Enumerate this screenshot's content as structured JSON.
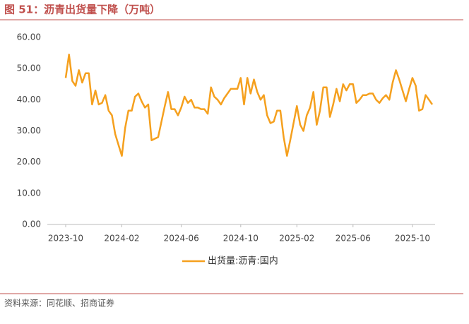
{
  "chart_data": {
    "type": "line",
    "title": "图 51：沥青出货量下降（万吨）",
    "source": "资料来源：同花顺、招商证券",
    "categories": [
      "2023-10",
      null,
      null,
      null,
      null,
      null,
      null,
      null,
      null,
      null,
      null,
      null,
      null,
      null,
      null,
      null,
      null,
      "2024-02",
      null,
      null,
      null,
      null,
      null,
      null,
      null,
      null,
      null,
      null,
      null,
      null,
      null,
      null,
      null,
      null,
      null,
      "2024-06",
      null,
      null,
      null,
      null,
      null,
      null,
      null,
      null,
      null,
      null,
      null,
      null,
      null,
      null,
      null,
      null,
      null,
      "2024-10",
      null,
      null,
      null,
      null,
      null,
      null,
      null,
      null,
      null,
      null,
      null,
      null,
      null,
      null,
      null,
      null,
      "2025-02",
      null,
      null,
      null,
      null,
      null,
      null,
      null,
      null,
      null,
      null,
      null,
      null,
      null,
      null,
      null,
      null,
      "2025-06",
      null,
      null,
      null,
      null,
      null,
      null,
      null,
      null,
      null,
      null,
      null,
      null,
      null,
      null,
      null,
      null,
      null,
      "2025-10",
      null,
      null,
      null,
      null,
      null,
      null
    ],
    "series": [
      {
        "name": "出货量:沥青:国内",
        "color": "#f5a01e",
        "values": [
          47,
          54.5,
          46,
          44.5,
          49.5,
          45.5,
          48.5,
          48.5,
          38.5,
          43,
          38.5,
          39,
          41.5,
          36.5,
          35,
          29,
          25.5,
          22,
          31,
          36.5,
          36.5,
          41,
          42,
          39.5,
          37.5,
          38.5,
          27,
          27.5,
          28,
          33,
          38,
          42.5,
          37,
          37,
          35,
          37.5,
          41,
          39,
          40,
          37.5,
          37.5,
          37,
          37,
          35.5,
          44,
          41,
          40,
          38.5,
          40.5,
          42,
          43.5,
          43.5,
          43.5,
          47,
          38.5,
          47,
          42,
          46.5,
          42.5,
          40,
          41.5,
          35,
          32.5,
          33,
          36.5,
          36.5,
          28,
          22,
          27,
          32.5,
          38,
          32,
          30,
          35,
          37.5,
          42.5,
          32,
          36.5,
          44,
          44,
          34.5,
          38.5,
          43.5,
          39.5,
          45,
          43,
          45,
          45,
          39,
          40,
          41.5,
          41.5,
          42,
          42,
          40,
          39,
          40.5,
          41.5,
          40,
          45.5,
          49.5,
          46.5,
          43,
          39.5,
          43.5,
          47,
          44.5,
          36.5,
          37,
          41.5,
          40,
          38.5
        ]
      }
    ],
    "ylim": [
      0,
      60
    ],
    "yticks": [
      {
        "value": 0,
        "label": "0.00"
      },
      {
        "value": 10,
        "label": "10.00"
      },
      {
        "value": 20,
        "label": "20.00"
      },
      {
        "value": 30,
        "label": "30.00"
      },
      {
        "value": 40,
        "label": "40.00"
      },
      {
        "value": 50,
        "label": "50.00"
      },
      {
        "value": 60,
        "label": "60.00"
      }
    ],
    "grid": false,
    "legend": "bottom"
  }
}
